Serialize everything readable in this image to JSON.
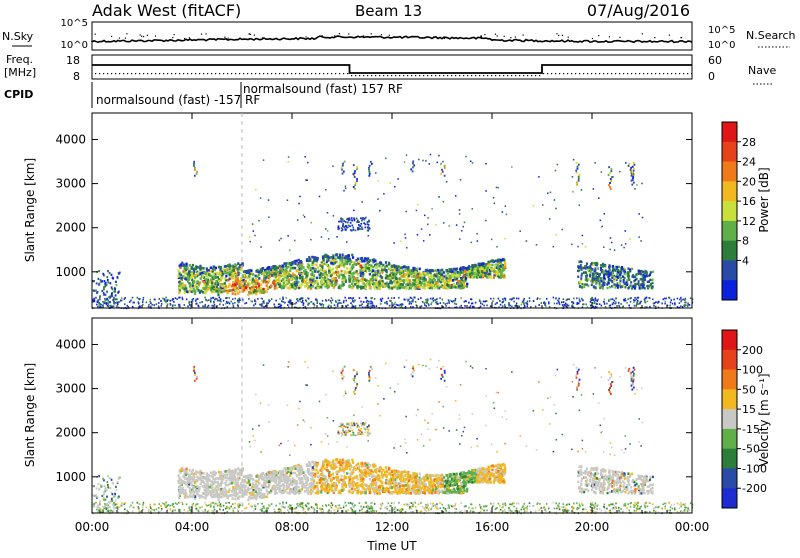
{
  "header": {
    "site": "Adak West (fitACF)",
    "beam": "Beam 13",
    "date": "07/Aug/2016"
  },
  "top_panels": {
    "nsky_label": "N.Sky",
    "nsearch_label": "N.Search",
    "noise_ticks_left": [
      "10^5",
      "10^0"
    ],
    "noise_ticks_right": [
      "10^5",
      "10^0"
    ],
    "freq_label_1": "Freq.",
    "freq_label_2": "[MHz]",
    "freq_ticks": [
      "18",
      "8"
    ],
    "nave_ticks": [
      "60",
      "0"
    ],
    "nave_label": "Nave",
    "cpid_label": "CPID",
    "cpid_text_1": "normalsound (fast) -157 RF",
    "cpid_text_2": "normalsound (fast) 157 RF"
  },
  "colors": {
    "power": [
      "#0b22dd",
      "#2a4aa8",
      "#2c7d3a",
      "#5fb048",
      "#c9e03a",
      "#f2b81f",
      "#f07a1a",
      "#e8421a",
      "#e01515"
    ],
    "velocity": [
      "#1d2bd0",
      "#2a4aa8",
      "#2c7d3a",
      "#5fb048",
      "#c8c8c4",
      "#f2b81f",
      "#f07a1a",
      "#e8421a",
      "#e01515"
    ],
    "ground": "#c8c8c4"
  },
  "chart_data": [
    {
      "type": "heatmap",
      "panel": "power",
      "x": [
        "00:00",
        "04:00",
        "08:00",
        "12:00",
        "16:00",
        "20:00",
        "00:00"
      ],
      "xlim_hours": [
        0,
        24
      ],
      "ylabel": "Slant Range [km]",
      "yticks": [
        "4000",
        "3000",
        "2000",
        "1000"
      ],
      "ylim": [
        180,
        4600
      ],
      "colorbar_label": "Power [dB]",
      "colorbar_ticks": [
        "28",
        "24",
        "20",
        "16",
        "12",
        "8",
        "4"
      ],
      "colorbar_range": [
        0,
        30
      ]
    },
    {
      "type": "heatmap",
      "panel": "velocity",
      "x": [
        "00:00",
        "04:00",
        "08:00",
        "12:00",
        "16:00",
        "20:00",
        "00:00"
      ],
      "xlim_hours": [
        0,
        24
      ],
      "xlabel": "Time UT",
      "ylabel": "Slant Range [km]",
      "yticks": [
        "4000",
        "3000",
        "2000",
        "1000"
      ],
      "ylim": [
        180,
        4600
      ],
      "colorbar_label": "Velocity [m s⁻¹]",
      "colorbar_ticks": [
        "200",
        "100",
        "50",
        "15",
        "-15",
        "-50",
        "-100",
        "-200"
      ],
      "colorbar_range": [
        -250,
        250
      ]
    }
  ],
  "xaxis": {
    "tick_labels": [
      "00:00",
      "04:00",
      "08:00",
      "12:00",
      "16:00",
      "20:00",
      "00:00"
    ],
    "label": "Time UT"
  }
}
